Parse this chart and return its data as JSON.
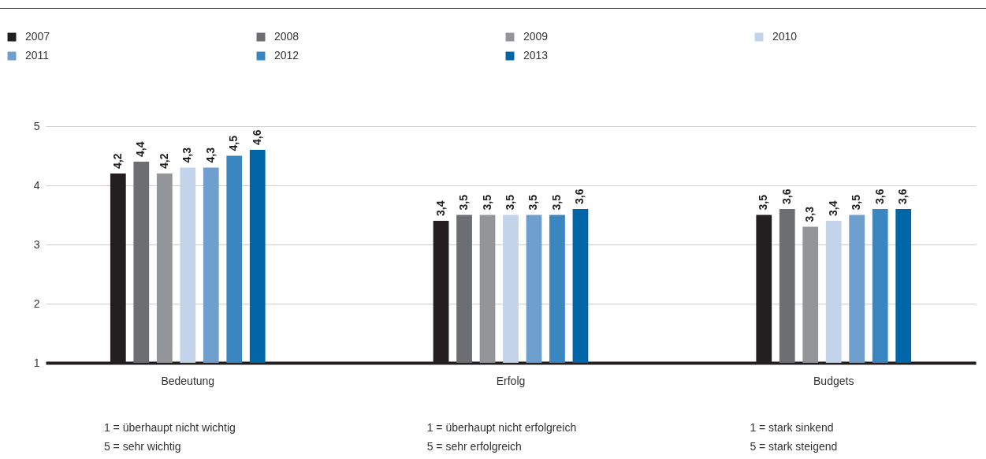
{
  "chart_data": {
    "type": "bar",
    "categories": [
      "Bedeutung",
      "Erfolg",
      "Budgets"
    ],
    "ylim": [
      1,
      5
    ],
    "yticks": [
      1,
      2,
      3,
      4,
      5
    ],
    "grid": "y",
    "legend": "top left",
    "series": [
      {
        "name": "2007",
        "color": "#231f20",
        "values": [
          4.2,
          3.4,
          3.5
        ],
        "value_labels": [
          "4,2",
          "3,4",
          "3,5"
        ]
      },
      {
        "name": "2008",
        "color": "#6d6e71",
        "values": [
          4.4,
          3.5,
          3.6
        ],
        "value_labels": [
          "4,4",
          "3,5",
          "3,6"
        ]
      },
      {
        "name": "2009",
        "color": "#939598",
        "values": [
          4.2,
          3.5,
          3.3
        ],
        "value_labels": [
          "4,2",
          "3,5",
          "3,3"
        ]
      },
      {
        "name": "2010",
        "color": "#c3d3ea",
        "values": [
          4.3,
          3.5,
          3.4
        ],
        "value_labels": [
          "4,3",
          "3,5",
          "3,4"
        ]
      },
      {
        "name": "2011",
        "color": "#6f9fcf",
        "values": [
          4.3,
          3.5,
          3.5
        ],
        "value_labels": [
          "4,3",
          "3,5",
          "3,5"
        ]
      },
      {
        "name": "2012",
        "color": "#3a86c1",
        "values": [
          4.5,
          3.5,
          3.6
        ],
        "value_labels": [
          "4,5",
          "3,5",
          "3,6"
        ]
      },
      {
        "name": "2013",
        "color": "#0066a8",
        "values": [
          4.6,
          3.6,
          3.6
        ],
        "value_labels": [
          "4,6",
          "3,6",
          "3,6"
        ]
      }
    ],
    "annotations": [
      "1 = überhaupt nicht wichtig\n5 = sehr wichtig",
      "1 = überhaupt nicht erfolgreich\n5 = sehr erfolgreich",
      "1 = stark sinkend\n5 = stark steigend"
    ]
  }
}
